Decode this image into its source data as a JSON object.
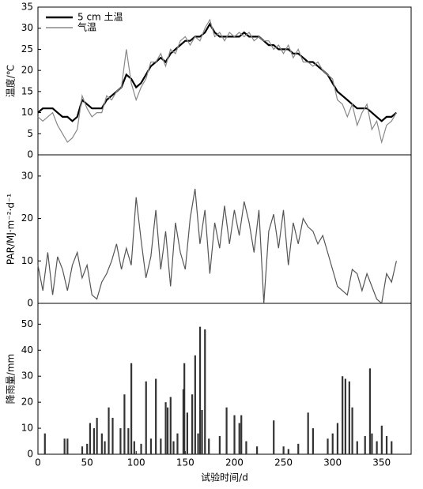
{
  "chart_data": [
    {
      "type": "line",
      "y_label": "温度/℃",
      "x": [
        0,
        5,
        10,
        15,
        20,
        25,
        30,
        35,
        40,
        45,
        50,
        55,
        60,
        65,
        70,
        75,
        80,
        85,
        90,
        95,
        100,
        105,
        110,
        115,
        120,
        125,
        130,
        135,
        140,
        145,
        150,
        155,
        160,
        165,
        170,
        175,
        180,
        185,
        190,
        195,
        200,
        205,
        210,
        215,
        220,
        225,
        230,
        235,
        240,
        245,
        250,
        255,
        260,
        265,
        270,
        275,
        280,
        285,
        290,
        295,
        300,
        305,
        310,
        315,
        320,
        325,
        330,
        335,
        340,
        345,
        350,
        355,
        360,
        365
      ],
      "series": [
        {
          "name": "5 cm 土温",
          "color": "#000000",
          "values": [
            10,
            11,
            11,
            11,
            10,
            9,
            9,
            8,
            9,
            13,
            12,
            11,
            11,
            11,
            13,
            14,
            15,
            16,
            19,
            18,
            16,
            17,
            19,
            21,
            22,
            23,
            22,
            24,
            25,
            26,
            27,
            27,
            28,
            28,
            29,
            31,
            29,
            28,
            28,
            28,
            28,
            28,
            29,
            28,
            28,
            28,
            27,
            26,
            26,
            25,
            25,
            25,
            24,
            24,
            23,
            22,
            22,
            21,
            20,
            19,
            17,
            15,
            14,
            13,
            12,
            11,
            11,
            11,
            10,
            9,
            8,
            9,
            9,
            10
          ]
        },
        {
          "name": "气温",
          "color": "#888888",
          "values": [
            9,
            8,
            9,
            10,
            7,
            5,
            3,
            4,
            6,
            14,
            11,
            9,
            10,
            10,
            14,
            13,
            15,
            16,
            25,
            17,
            13,
            16,
            18,
            22,
            22,
            24,
            21,
            25,
            24,
            27,
            28,
            26,
            28,
            27,
            30,
            32,
            28,
            29,
            27,
            29,
            28,
            29,
            28,
            29,
            27,
            28,
            27,
            27,
            25,
            26,
            24,
            26,
            23,
            25,
            22,
            22,
            21,
            22,
            20,
            19,
            18,
            13,
            12,
            9,
            12,
            7,
            10,
            12,
            6,
            8,
            3,
            7,
            8,
            10
          ]
        }
      ],
      "xlim": [
        0,
        380
      ],
      "ylim": [
        0,
        35
      ],
      "yticks": [
        0,
        5,
        10,
        15,
        20,
        25,
        30,
        35
      ]
    },
    {
      "type": "line",
      "y_label": "PAR/MJ·m⁻²·d⁻¹",
      "x": [
        0,
        5,
        10,
        15,
        20,
        25,
        30,
        35,
        40,
        45,
        50,
        55,
        60,
        65,
        70,
        75,
        80,
        85,
        90,
        95,
        100,
        105,
        110,
        115,
        120,
        125,
        130,
        135,
        140,
        145,
        150,
        155,
        160,
        165,
        170,
        175,
        180,
        185,
        190,
        195,
        200,
        205,
        210,
        215,
        220,
        225,
        230,
        235,
        240,
        245,
        250,
        255,
        260,
        265,
        270,
        275,
        280,
        285,
        290,
        295,
        300,
        305,
        310,
        315,
        320,
        325,
        330,
        335,
        340,
        345,
        350,
        355,
        360,
        365
      ],
      "series": [
        {
          "color": "#555555",
          "values": [
            9,
            3,
            12,
            2,
            11,
            8,
            3,
            9,
            12,
            6,
            9,
            2,
            1,
            5,
            7,
            10,
            14,
            8,
            13,
            9,
            25,
            15,
            6,
            11,
            22,
            8,
            17,
            4,
            19,
            12,
            8,
            20,
            27,
            14,
            22,
            7,
            19,
            13,
            23,
            14,
            22,
            16,
            24,
            19,
            12,
            22,
            0,
            17,
            21,
            13,
            22,
            9,
            19,
            14,
            20,
            18,
            17,
            14,
            16,
            12,
            8,
            4,
            3,
            2,
            8,
            7,
            3,
            7,
            4,
            1,
            0,
            7,
            5,
            10
          ]
        }
      ],
      "xlim": [
        0,
        380
      ],
      "ylim": [
        0,
        35
      ],
      "yticks": [
        0,
        10,
        20,
        30
      ]
    },
    {
      "type": "bar",
      "y_label": "降雨量/mm",
      "x_label": "试验时间/d",
      "color": "#333333",
      "x": [
        7,
        27,
        30,
        45,
        50,
        53,
        57,
        60,
        65,
        68,
        72,
        76,
        84,
        88,
        92,
        95,
        98,
        105,
        110,
        115,
        120,
        125,
        130,
        132,
        135,
        138,
        142,
        148,
        149,
        152,
        157,
        160,
        163,
        165,
        167,
        170,
        174,
        185,
        192,
        200,
        205,
        207,
        212,
        223,
        240,
        250,
        255,
        265,
        275,
        280,
        295,
        300,
        305,
        310,
        313,
        317,
        320,
        325,
        333,
        338,
        340,
        345,
        350,
        355,
        360
      ],
      "values": [
        8,
        6,
        6,
        3,
        4,
        12,
        10,
        14,
        8,
        5,
        18,
        14,
        10,
        23,
        10,
        35,
        5,
        4,
        28,
        6,
        29,
        6,
        20,
        18,
        22,
        5,
        8,
        25,
        35,
        16,
        23,
        38,
        8,
        49,
        17,
        48,
        6,
        7,
        18,
        15,
        12,
        15,
        5,
        3,
        13,
        3,
        2,
        4,
        16,
        10,
        6,
        8,
        12,
        30,
        29,
        28,
        18,
        5,
        7,
        33,
        8,
        5,
        11,
        7,
        5
      ],
      "xlim": [
        0,
        380
      ],
      "ylim": [
        0,
        58
      ],
      "yticks": [
        0,
        10,
        20,
        30,
        40,
        50
      ],
      "xticks": [
        0,
        50,
        100,
        150,
        200,
        250,
        300,
        350
      ]
    }
  ]
}
